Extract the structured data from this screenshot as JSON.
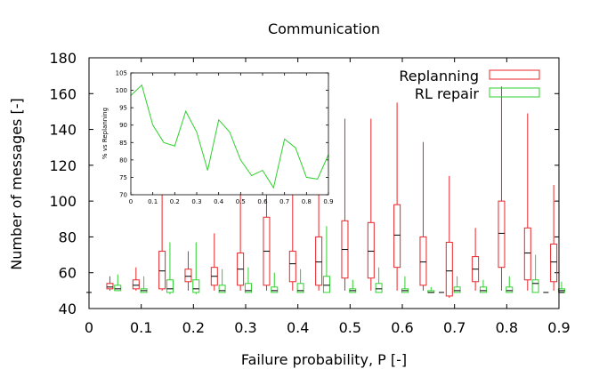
{
  "chart_data": {
    "type": "boxplot",
    "title": "Communication",
    "xlabel": "Failure probability, P [-]",
    "ylabel": "Number of messages [-]",
    "xlim": [
      0,
      0.9
    ],
    "ylim": [
      40,
      180
    ],
    "xticks": [
      "0",
      "0.1",
      "0.2",
      "0.3",
      "0.4",
      "0.5",
      "0.6",
      "0.7",
      "0.8",
      "0.9"
    ],
    "yticks": [
      "40",
      "60",
      "80",
      "100",
      "120",
      "140",
      "160",
      "180"
    ],
    "legend": {
      "position": "top-right",
      "entries": [
        "Replanning",
        "RL repair"
      ]
    },
    "colors": {
      "replanning": "#e8262a",
      "rl_repair": "#2ed12e",
      "axis": "#000000",
      "median": "#000000"
    },
    "series": [
      {
        "name": "Replanning",
        "color": "#e8262a",
        "boxes": [
          {
            "p": 0.04,
            "min": 50,
            "q1": 51,
            "median": 52,
            "q3": 54,
            "max": 58
          },
          {
            "p": 0.09,
            "min": 50,
            "q1": 51,
            "median": 53,
            "q3": 56,
            "max": 63
          },
          {
            "p": 0.14,
            "min": 50,
            "q1": 51,
            "median": 61,
            "q3": 72,
            "max": 124
          },
          {
            "p": 0.19,
            "min": 50,
            "q1": 55,
            "median": 58,
            "q3": 62,
            "max": 72
          },
          {
            "p": 0.24,
            "min": 50,
            "q1": 53,
            "median": 58,
            "q3": 63,
            "max": 82
          },
          {
            "p": 0.29,
            "min": 50,
            "q1": 53,
            "median": 62,
            "q3": 71,
            "max": 108
          },
          {
            "p": 0.34,
            "min": 50,
            "q1": 53,
            "median": 72,
            "q3": 91,
            "max": 163
          },
          {
            "p": 0.39,
            "min": 50,
            "q1": 55,
            "median": 65,
            "q3": 72,
            "max": 107
          },
          {
            "p": 0.44,
            "min": 50,
            "q1": 53,
            "median": 66,
            "q3": 80,
            "max": 145
          },
          {
            "p": 0.49,
            "min": 50,
            "q1": 57,
            "median": 73,
            "q3": 89,
            "max": 146
          },
          {
            "p": 0.54,
            "min": 50,
            "q1": 57,
            "median": 72,
            "q3": 88,
            "max": 146
          },
          {
            "p": 0.59,
            "min": 50,
            "q1": 63,
            "median": 81,
            "q3": 98,
            "max": 155
          },
          {
            "p": 0.64,
            "min": 50,
            "q1": 53,
            "median": 66,
            "q3": 80,
            "max": 133
          },
          {
            "p": 0.69,
            "min": 46,
            "q1": 47,
            "median": 61,
            "q3": 77,
            "max": 114
          },
          {
            "p": 0.74,
            "min": 50,
            "q1": 55,
            "median": 62,
            "q3": 69,
            "max": 85
          },
          {
            "p": 0.79,
            "min": 50,
            "q1": 63,
            "median": 82,
            "q3": 100,
            "max": 164
          },
          {
            "p": 0.84,
            "min": 50,
            "q1": 56,
            "median": 71,
            "q3": 85,
            "max": 149
          },
          {
            "p": 0.89,
            "min": 50,
            "q1": 55,
            "median": 66,
            "q3": 76,
            "max": 109
          }
        ]
      },
      {
        "name": "RL repair",
        "color": "#2ed12e",
        "boxes": [
          {
            "p": 0.055,
            "min": 50,
            "q1": 50,
            "median": 51,
            "q3": 53,
            "max": 59
          },
          {
            "p": 0.105,
            "min": 49,
            "q1": 49,
            "median": 50,
            "q3": 51,
            "max": 58
          },
          {
            "p": 0.155,
            "min": 48,
            "q1": 49,
            "median": 51,
            "q3": 56,
            "max": 77
          },
          {
            "p": 0.205,
            "min": 48,
            "q1": 49,
            "median": 51,
            "q3": 56,
            "max": 77
          },
          {
            "p": 0.255,
            "min": 49,
            "q1": 49,
            "median": 50,
            "q3": 53,
            "max": 62
          },
          {
            "p": 0.305,
            "min": 49,
            "q1": 49,
            "median": 50,
            "q3": 54,
            "max": 63
          },
          {
            "p": 0.355,
            "min": 49,
            "q1": 49,
            "median": 50,
            "q3": 52,
            "max": 60
          },
          {
            "p": 0.405,
            "min": 49,
            "q1": 49,
            "median": 50,
            "q3": 54,
            "max": 62
          },
          {
            "p": 0.455,
            "min": 49,
            "q1": 49,
            "median": 53,
            "q3": 58,
            "max": 86
          },
          {
            "p": 0.505,
            "min": 49,
            "q1": 49,
            "median": 50,
            "q3": 51,
            "max": 56
          },
          {
            "p": 0.555,
            "min": 49,
            "q1": 49,
            "median": 51,
            "q3": 54,
            "max": 63
          },
          {
            "p": 0.605,
            "min": 49,
            "q1": 49,
            "median": 50,
            "q3": 51,
            "max": 58
          },
          {
            "p": 0.655,
            "min": 49,
            "q1": 49,
            "median": 49,
            "q3": 50,
            "max": 52
          },
          {
            "p": 0.705,
            "min": 49,
            "q1": 49,
            "median": 50,
            "q3": 52,
            "max": 58
          },
          {
            "p": 0.755,
            "min": 49,
            "q1": 49,
            "median": 50,
            "q3": 52,
            "max": 56
          },
          {
            "p": 0.805,
            "min": 49,
            "q1": 49,
            "median": 50,
            "q3": 52,
            "max": 58
          },
          {
            "p": 0.855,
            "min": 49,
            "q1": 49,
            "median": 54,
            "q3": 56,
            "max": 70
          },
          {
            "p": 0.905,
            "min": 49,
            "q1": 49,
            "median": 50,
            "q3": 51,
            "max": 55
          }
        ]
      }
    ],
    "extra_markers": [
      {
        "p": 0.0,
        "value": 49
      },
      {
        "p": 0.675,
        "value": 49
      },
      {
        "p": 0.875,
        "value": 49
      },
      {
        "p": 0.905,
        "value": 49
      }
    ],
    "inset": {
      "type": "line",
      "ylabel": "% vs Replanning",
      "xlim": [
        0,
        0.9
      ],
      "ylim": [
        70,
        105
      ],
      "xticks": [
        "0",
        "0.1",
        "0.2",
        "0.3",
        "0.4",
        "0.5",
        "0.6",
        "0.7",
        "0.8",
        "0.9"
      ],
      "yticks": [
        "70",
        "75",
        "80",
        "85",
        "90",
        "95",
        "100",
        "105"
      ],
      "color": "#2ed12e",
      "x": [
        0,
        0.05,
        0.1,
        0.15,
        0.2,
        0.25,
        0.3,
        0.35,
        0.4,
        0.45,
        0.5,
        0.55,
        0.6,
        0.65,
        0.7,
        0.75,
        0.8,
        0.85,
        0.9
      ],
      "y": [
        98.5,
        101.5,
        90,
        85,
        84,
        94,
        88,
        77,
        91.5,
        88,
        80,
        75.5,
        77,
        72,
        86,
        83.5,
        75,
        74.5,
        81.5
      ]
    }
  }
}
